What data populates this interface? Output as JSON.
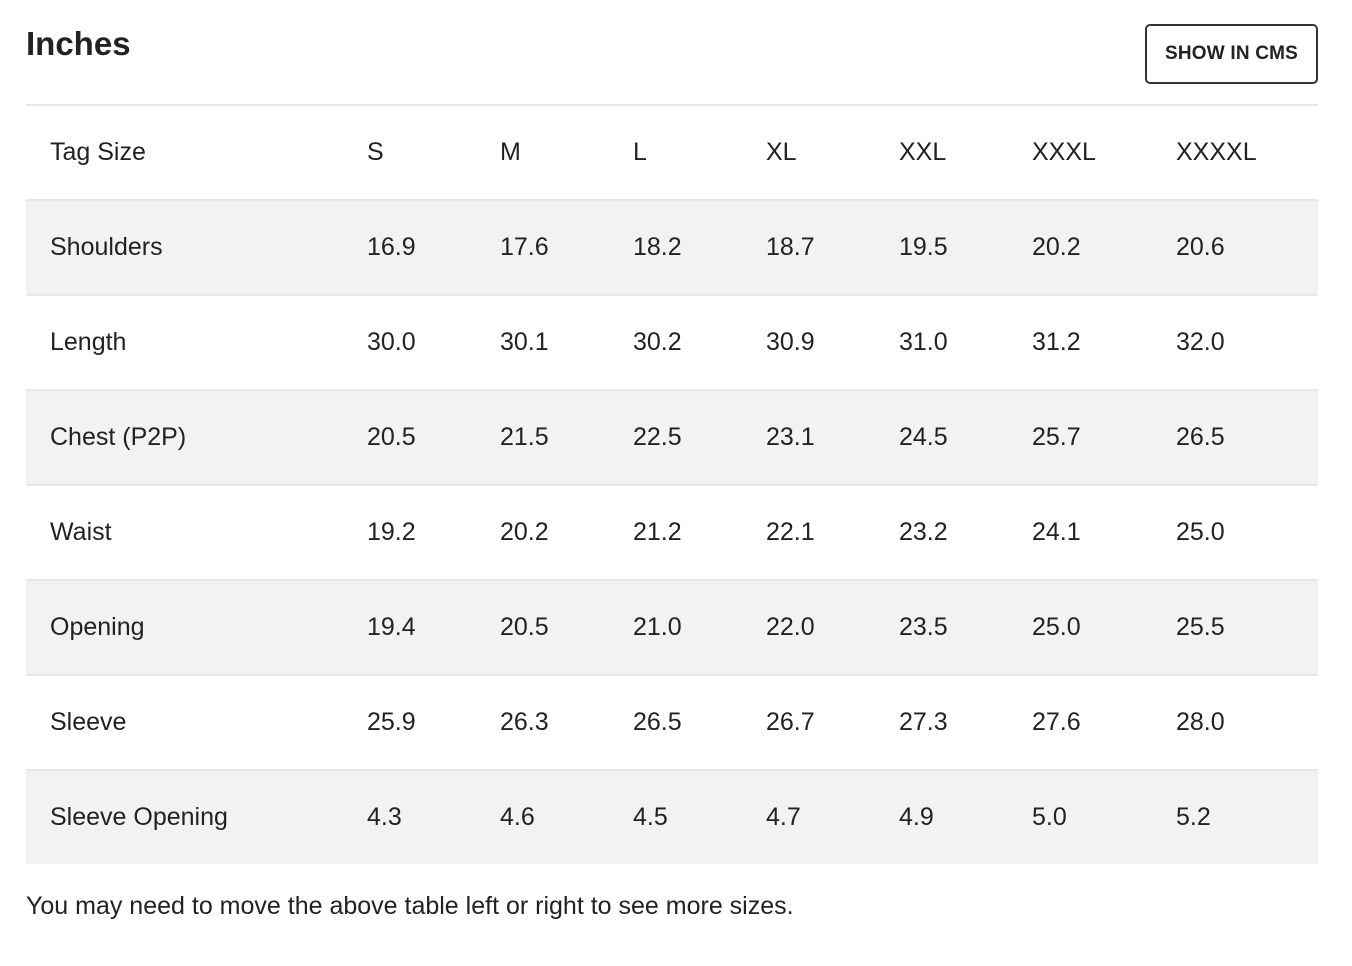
{
  "header": {
    "title": "Inches",
    "cms_button_label": "SHOW IN CMS"
  },
  "table": {
    "headers": [
      "Tag Size",
      "S",
      "M",
      "L",
      "XL",
      "XXL",
      "XXXL",
      "XXXXL"
    ],
    "rows": [
      {
        "label": "Shoulders",
        "values": [
          "16.9",
          "17.6",
          "18.2",
          "18.7",
          "19.5",
          "20.2",
          "20.6"
        ]
      },
      {
        "label": "Length",
        "values": [
          "30.0",
          "30.1",
          "30.2",
          "30.9",
          "31.0",
          "31.2",
          "32.0"
        ]
      },
      {
        "label": "Chest (P2P)",
        "values": [
          "20.5",
          "21.5",
          "22.5",
          "23.1",
          "24.5",
          "25.7",
          "26.5"
        ]
      },
      {
        "label": "Waist",
        "values": [
          "19.2",
          "20.2",
          "21.2",
          "22.1",
          "23.2",
          "24.1",
          "25.0"
        ]
      },
      {
        "label": "Opening",
        "values": [
          "19.4",
          "20.5",
          "21.0",
          "22.0",
          "23.5",
          "25.0",
          "25.5"
        ]
      },
      {
        "label": "Sleeve",
        "values": [
          "25.9",
          "26.3",
          "26.5",
          "26.7",
          "27.3",
          "27.6",
          "28.0"
        ]
      },
      {
        "label": "Sleeve Opening",
        "values": [
          "4.3",
          "4.6",
          "4.5",
          "4.7",
          "4.9",
          "5.0",
          "5.2"
        ]
      }
    ]
  },
  "footnote": "You may need to move the above table left or right to see more sizes.",
  "colors": {
    "shaded_row": "#f2f2f2",
    "border": "#e8e8e8",
    "text": "#222222"
  }
}
